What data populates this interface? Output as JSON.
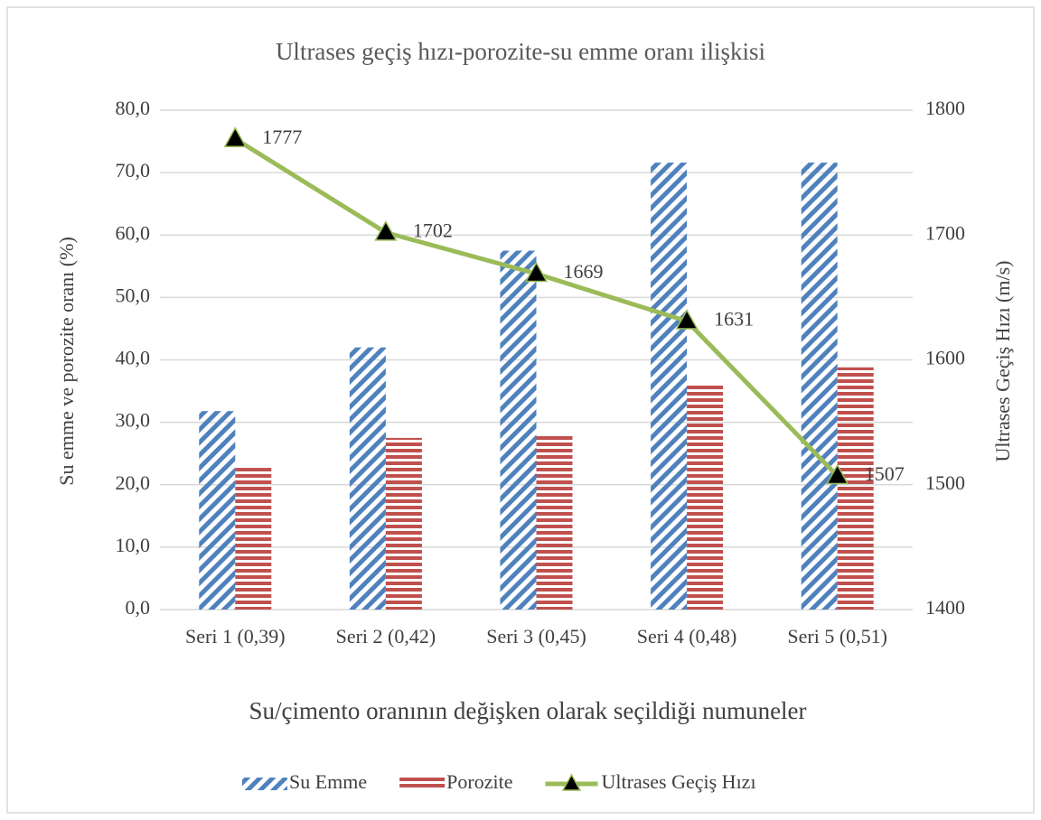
{
  "chart_data": {
    "type": "bar",
    "title": "Ultrases geçiş hızı-porozite-su emme oranı ilişkisi",
    "x_label": "Su/çimento oranının değişken olarak seçildiği numuneler",
    "y_label": "Su emme ve porozite  oranı (%)",
    "y2_label": "Ultrases Geçiş Hızı (m/s)",
    "categories": [
      "Seri 1 (0,39)",
      "Seri 2 (0,42)",
      "Seri 3 (0,45)",
      "Seri 4 (0,48)",
      "Seri 5 (0,51)"
    ],
    "series": [
      {
        "name": "Su Emme",
        "type": "bar",
        "pattern": "diagonal",
        "color": "#4f81bd",
        "values": [
          31.8,
          42.0,
          57.5,
          71.6,
          71.6
        ]
      },
      {
        "name": "Porozite",
        "type": "bar",
        "pattern": "horizontal",
        "color": "#c0504d",
        "values": [
          22.7,
          27.5,
          28.2,
          36.0,
          38.8
        ]
      },
      {
        "name": "Ultrases Geçiş Hızı",
        "type": "line",
        "axis": "y2",
        "color": "#9bbb59",
        "marker": "triangle",
        "values": [
          1777,
          1702,
          1669,
          1631,
          1507
        ]
      }
    ],
    "ylim": [
      0,
      80
    ],
    "yticks": [
      {
        "value": 0,
        "label": "0,0"
      },
      {
        "value": 10,
        "label": "10,0"
      },
      {
        "value": 20,
        "label": "20,0"
      },
      {
        "value": 30,
        "label": "30,0"
      },
      {
        "value": 40,
        "label": "40,0"
      },
      {
        "value": 50,
        "label": "50,0"
      },
      {
        "value": 60,
        "label": "60,0"
      },
      {
        "value": 70,
        "label": "70,0"
      },
      {
        "value": 80,
        "label": "80,0"
      }
    ],
    "y2lim": [
      1400,
      1800
    ],
    "y2ticks": [
      1400,
      1500,
      1600,
      1700,
      1800
    ],
    "grid": true,
    "legend": "bottom"
  }
}
